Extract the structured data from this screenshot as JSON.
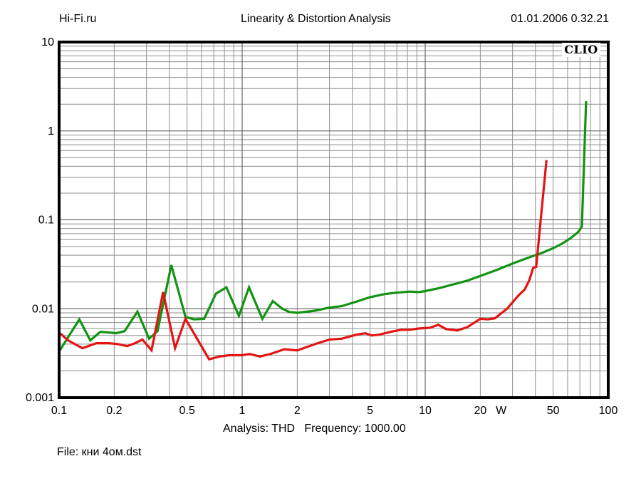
{
  "header": {
    "site": "Hi-Fi.ru",
    "title": "Linearity & Distortion Analysis",
    "datetime": "01.01.2006 0.32.21"
  },
  "watermark": "CLIO",
  "footer": {
    "analysis_line": "Analysis: THD   Frequency: 1000.00",
    "file_line": "File: кни 4ом.dst"
  },
  "chart_data": {
    "type": "line",
    "title": "Linearity & Distortion Analysis",
    "xlabel_unit": "W",
    "x_axis": {
      "scale": "log",
      "min": 0.1,
      "max": 100,
      "ticks": [
        {
          "v": 0.1,
          "label": "0.1"
        },
        {
          "v": 0.2,
          "label": "0.2"
        },
        {
          "v": 0.5,
          "label": "0.5"
        },
        {
          "v": 1,
          "label": "1"
        },
        {
          "v": 2,
          "label": "2"
        },
        {
          "v": 5,
          "label": "5"
        },
        {
          "v": 10,
          "label": "10"
        },
        {
          "v": 20,
          "label": "20"
        },
        {
          "v": 50,
          "label": "50"
        },
        {
          "v": 100,
          "label": "100"
        }
      ],
      "unit_label": {
        "text": "W",
        "position_w": 26
      }
    },
    "y_axis": {
      "scale": "log",
      "min": 0.001,
      "max": 10,
      "ticks": [
        {
          "v": 10,
          "label": "10"
        },
        {
          "v": 1,
          "label": "1"
        },
        {
          "v": 0.1,
          "label": "0.1"
        },
        {
          "v": 0.01,
          "label": "0.01"
        },
        {
          "v": 0.001,
          "label": "0.001"
        }
      ]
    },
    "grid": {
      "minor_color": "#8e8e8e",
      "major_color": "#4a4a4a",
      "border_color": "#000000"
    },
    "series": [
      {
        "name": "thd-curve-green",
        "color": "#129312",
        "points": [
          [
            0.1,
            0.0033
          ],
          [
            0.129,
            0.0076
          ],
          [
            0.148,
            0.0044
          ],
          [
            0.168,
            0.0055
          ],
          [
            0.187,
            0.0054
          ],
          [
            0.205,
            0.0053
          ],
          [
            0.228,
            0.0056
          ],
          [
            0.268,
            0.0093
          ],
          [
            0.31,
            0.0046
          ],
          [
            0.345,
            0.0056
          ],
          [
            0.41,
            0.031
          ],
          [
            0.49,
            0.0081
          ],
          [
            0.545,
            0.0076
          ],
          [
            0.62,
            0.0077
          ],
          [
            0.72,
            0.0148
          ],
          [
            0.82,
            0.0174
          ],
          [
            0.96,
            0.0083
          ],
          [
            1.09,
            0.0174
          ],
          [
            1.29,
            0.0077
          ],
          [
            1.47,
            0.0122
          ],
          [
            1.66,
            0.01
          ],
          [
            1.81,
            0.0092
          ],
          [
            2.0,
            0.009
          ],
          [
            2.5,
            0.0095
          ],
          [
            3.0,
            0.0103
          ],
          [
            3.5,
            0.0107
          ],
          [
            4.2,
            0.012
          ],
          [
            5.0,
            0.0135
          ],
          [
            6.0,
            0.0146
          ],
          [
            7.0,
            0.0152
          ],
          [
            8.2,
            0.0156
          ],
          [
            9.2,
            0.0154
          ],
          [
            10,
            0.0158
          ],
          [
            12,
            0.0171
          ],
          [
            14,
            0.0186
          ],
          [
            17,
            0.0207
          ],
          [
            20,
            0.0234
          ],
          [
            24.5,
            0.0272
          ],
          [
            30,
            0.0322
          ],
          [
            36,
            0.0371
          ],
          [
            43.5,
            0.0425
          ],
          [
            50,
            0.048
          ],
          [
            56,
            0.054
          ],
          [
            62,
            0.0618
          ],
          [
            68,
            0.072
          ],
          [
            70.5,
            0.079
          ],
          [
            71.8,
            0.0845
          ],
          [
            75.7,
            2.16
          ]
        ]
      },
      {
        "name": "thd-curve-red",
        "color": "#e41414",
        "points": [
          [
            0.1,
            0.0054
          ],
          [
            0.112,
            0.0044
          ],
          [
            0.134,
            0.0036
          ],
          [
            0.16,
            0.0041
          ],
          [
            0.187,
            0.0041
          ],
          [
            0.21,
            0.004
          ],
          [
            0.235,
            0.0038
          ],
          [
            0.26,
            0.0041
          ],
          [
            0.285,
            0.0045
          ],
          [
            0.32,
            0.0034
          ],
          [
            0.37,
            0.0154
          ],
          [
            0.43,
            0.0036
          ],
          [
            0.49,
            0.0077
          ],
          [
            0.66,
            0.0027
          ],
          [
            0.75,
            0.0029
          ],
          [
            0.85,
            0.003
          ],
          [
            1.0,
            0.003
          ],
          [
            1.1,
            0.0031
          ],
          [
            1.25,
            0.0029
          ],
          [
            1.43,
            0.0031
          ],
          [
            1.7,
            0.0035
          ],
          [
            2.0,
            0.0034
          ],
          [
            2.5,
            0.004
          ],
          [
            3.0,
            0.0045
          ],
          [
            3.5,
            0.0046
          ],
          [
            4.2,
            0.0051
          ],
          [
            4.7,
            0.0053
          ],
          [
            5.1,
            0.005
          ],
          [
            5.6,
            0.0051
          ],
          [
            6.5,
            0.0055
          ],
          [
            7.4,
            0.0058
          ],
          [
            8.2,
            0.0058
          ],
          [
            9.3,
            0.006
          ],
          [
            10.6,
            0.0061
          ],
          [
            11.8,
            0.0066
          ],
          [
            13,
            0.0059
          ],
          [
            15,
            0.0057
          ],
          [
            17,
            0.0062
          ],
          [
            20,
            0.0077
          ],
          [
            22,
            0.0076
          ],
          [
            24,
            0.0078
          ],
          [
            28,
            0.01
          ],
          [
            32.4,
            0.0142
          ],
          [
            35,
            0.0165
          ],
          [
            37,
            0.0208
          ],
          [
            38.9,
            0.0288
          ],
          [
            40.4,
            0.0295
          ],
          [
            46,
            0.47
          ]
        ]
      }
    ],
    "legend": "none"
  }
}
